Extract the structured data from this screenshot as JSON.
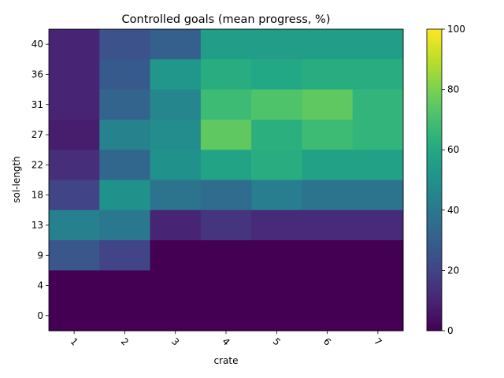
{
  "chart_data": {
    "type": "heatmap",
    "title": "Controlled goals (mean progress, %)",
    "xlabel": "crate",
    "ylabel": "sol-length",
    "x_categories": [
      "1",
      "2",
      "3",
      "4",
      "5",
      "6",
      "7"
    ],
    "y_categories": [
      "40",
      "36",
      "31",
      "27",
      "22",
      "18",
      "13",
      "9",
      "4",
      "0"
    ],
    "values": [
      [
        10,
        25,
        30,
        55,
        55,
        55,
        55
      ],
      [
        10,
        28,
        52,
        62,
        60,
        62,
        62
      ],
      [
        10,
        32,
        46,
        68,
        72,
        75,
        65
      ],
      [
        8,
        44,
        48,
        75,
        63,
        68,
        65
      ],
      [
        13,
        33,
        50,
        58,
        62,
        57,
        57
      ],
      [
        20,
        50,
        38,
        35,
        42,
        38,
        38
      ],
      [
        43,
        40,
        10,
        15,
        12,
        12,
        12
      ],
      [
        27,
        20,
        0,
        0,
        0,
        0,
        0
      ],
      [
        0,
        0,
        0,
        0,
        0,
        0,
        0
      ],
      [
        0,
        0,
        0,
        0,
        0,
        0,
        0
      ]
    ],
    "colorbar": {
      "min": 0,
      "max": 100,
      "ticks": [
        "0",
        "20",
        "40",
        "60",
        "80",
        "100"
      ],
      "colormap": "viridis"
    },
    "grid": false,
    "legend": "none"
  }
}
